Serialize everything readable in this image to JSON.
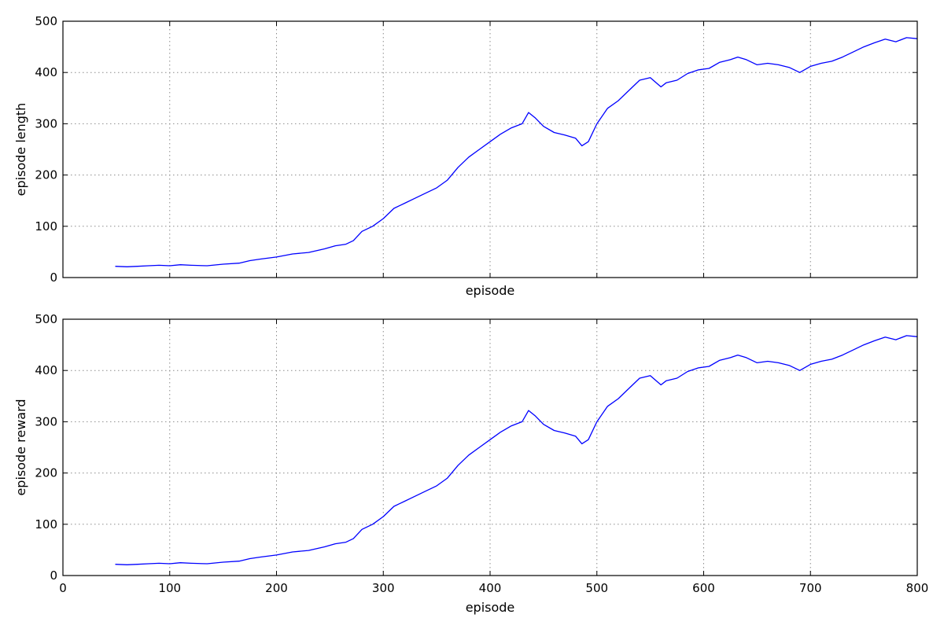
{
  "chart_data": [
    {
      "type": "line",
      "title": "",
      "xlabel": "episode",
      "ylabel": "episode length",
      "xlim": [
        0,
        800
      ],
      "ylim": [
        0,
        500
      ],
      "x_ticks": [
        0,
        100,
        200,
        300,
        400,
        500,
        600,
        700,
        800
      ],
      "y_ticks": [
        0,
        100,
        200,
        300,
        400,
        500
      ],
      "x_tick_labels_shown": false,
      "grid": true,
      "series": [
        {
          "color": "#0000ff",
          "points": [
            [
              49,
              22
            ],
            [
              60,
              21
            ],
            [
              70,
              22
            ],
            [
              80,
              23
            ],
            [
              90,
              24
            ],
            [
              100,
              23
            ],
            [
              110,
              25
            ],
            [
              120,
              24
            ],
            [
              135,
              23
            ],
            [
              150,
              26
            ],
            [
              165,
              28
            ],
            [
              175,
              33
            ],
            [
              185,
              36
            ],
            [
              200,
              40
            ],
            [
              215,
              46
            ],
            [
              230,
              49
            ],
            [
              245,
              56
            ],
            [
              255,
              62
            ],
            [
              265,
              65
            ],
            [
              272,
              72
            ],
            [
              280,
              90
            ],
            [
              290,
              100
            ],
            [
              300,
              115
            ],
            [
              310,
              135
            ],
            [
              320,
              145
            ],
            [
              330,
              155
            ],
            [
              340,
              165
            ],
            [
              350,
              175
            ],
            [
              360,
              190
            ],
            [
              370,
              215
            ],
            [
              380,
              235
            ],
            [
              390,
              250
            ],
            [
              400,
              265
            ],
            [
              410,
              280
            ],
            [
              420,
              292
            ],
            [
              430,
              300
            ],
            [
              436,
              322
            ],
            [
              442,
              312
            ],
            [
              450,
              295
            ],
            [
              460,
              283
            ],
            [
              470,
              278
            ],
            [
              480,
              272
            ],
            [
              486,
              257
            ],
            [
              492,
              265
            ],
            [
              500,
              300
            ],
            [
              510,
              330
            ],
            [
              520,
              345
            ],
            [
              530,
              365
            ],
            [
              540,
              385
            ],
            [
              550,
              390
            ],
            [
              560,
              372
            ],
            [
              565,
              380
            ],
            [
              575,
              385
            ],
            [
              585,
              398
            ],
            [
              595,
              405
            ],
            [
              605,
              408
            ],
            [
              615,
              420
            ],
            [
              625,
              425
            ],
            [
              632,
              430
            ],
            [
              640,
              425
            ],
            [
              650,
              415
            ],
            [
              660,
              418
            ],
            [
              670,
              415
            ],
            [
              680,
              410
            ],
            [
              690,
              400
            ],
            [
              700,
              412
            ],
            [
              710,
              418
            ],
            [
              720,
              422
            ],
            [
              730,
              430
            ],
            [
              740,
              440
            ],
            [
              750,
              450
            ],
            [
              760,
              458
            ],
            [
              770,
              465
            ],
            [
              780,
              460
            ],
            [
              790,
              468
            ],
            [
              800,
              466
            ]
          ]
        }
      ]
    },
    {
      "type": "line",
      "title": "",
      "xlabel": "episode",
      "ylabel": "episode reward",
      "xlim": [
        0,
        800
      ],
      "ylim": [
        0,
        500
      ],
      "x_ticks": [
        0,
        100,
        200,
        300,
        400,
        500,
        600,
        700,
        800
      ],
      "y_ticks": [
        0,
        100,
        200,
        300,
        400,
        500
      ],
      "x_tick_labels_shown": true,
      "grid": true,
      "series": [
        {
          "color": "#0000ff",
          "points": [
            [
              49,
              22
            ],
            [
              60,
              21
            ],
            [
              70,
              22
            ],
            [
              80,
              23
            ],
            [
              90,
              24
            ],
            [
              100,
              23
            ],
            [
              110,
              25
            ],
            [
              120,
              24
            ],
            [
              135,
              23
            ],
            [
              150,
              26
            ],
            [
              165,
              28
            ],
            [
              175,
              33
            ],
            [
              185,
              36
            ],
            [
              200,
              40
            ],
            [
              215,
              46
            ],
            [
              230,
              49
            ],
            [
              245,
              56
            ],
            [
              255,
              62
            ],
            [
              265,
              65
            ],
            [
              272,
              72
            ],
            [
              280,
              90
            ],
            [
              290,
              100
            ],
            [
              300,
              115
            ],
            [
              310,
              135
            ],
            [
              320,
              145
            ],
            [
              330,
              155
            ],
            [
              340,
              165
            ],
            [
              350,
              175
            ],
            [
              360,
              190
            ],
            [
              370,
              215
            ],
            [
              380,
              235
            ],
            [
              390,
              250
            ],
            [
              400,
              265
            ],
            [
              410,
              280
            ],
            [
              420,
              292
            ],
            [
              430,
              300
            ],
            [
              436,
              322
            ],
            [
              442,
              312
            ],
            [
              450,
              295
            ],
            [
              460,
              283
            ],
            [
              470,
              278
            ],
            [
              480,
              272
            ],
            [
              486,
              257
            ],
            [
              492,
              265
            ],
            [
              500,
              300
            ],
            [
              510,
              330
            ],
            [
              520,
              345
            ],
            [
              530,
              365
            ],
            [
              540,
              385
            ],
            [
              550,
              390
            ],
            [
              560,
              372
            ],
            [
              565,
              380
            ],
            [
              575,
              385
            ],
            [
              585,
              398
            ],
            [
              595,
              405
            ],
            [
              605,
              408
            ],
            [
              615,
              420
            ],
            [
              625,
              425
            ],
            [
              632,
              430
            ],
            [
              640,
              425
            ],
            [
              650,
              415
            ],
            [
              660,
              418
            ],
            [
              670,
              415
            ],
            [
              680,
              410
            ],
            [
              690,
              400
            ],
            [
              700,
              412
            ],
            [
              710,
              418
            ],
            [
              720,
              422
            ],
            [
              730,
              430
            ],
            [
              740,
              440
            ],
            [
              750,
              450
            ],
            [
              760,
              458
            ],
            [
              770,
              465
            ],
            [
              780,
              460
            ],
            [
              790,
              468
            ],
            [
              800,
              466
            ]
          ]
        }
      ]
    }
  ]
}
